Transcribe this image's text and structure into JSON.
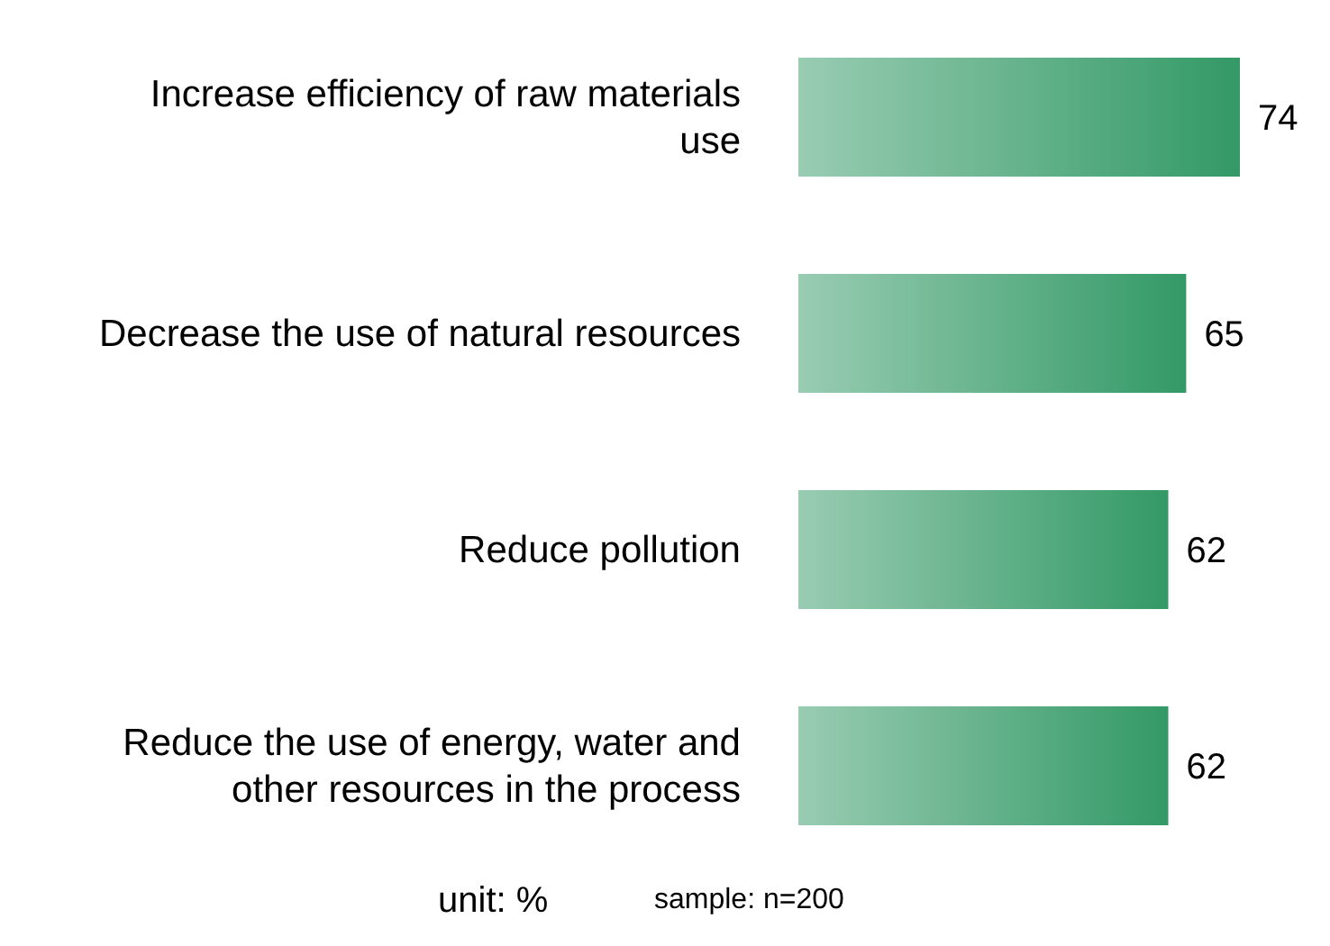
{
  "chart_data": {
    "type": "bar",
    "orientation": "horizontal",
    "categories": [
      "Increase efficiency of raw materials use",
      "Decrease the use of natural resources",
      "Reduce pollution",
      "Reduce the use of energy, water and other resources in the process"
    ],
    "values": [
      74,
      65,
      62,
      62
    ],
    "color": "#339966",
    "data_labels": true,
    "annotations": [
      "unit: %",
      "sample: n=200"
    ]
  }
}
